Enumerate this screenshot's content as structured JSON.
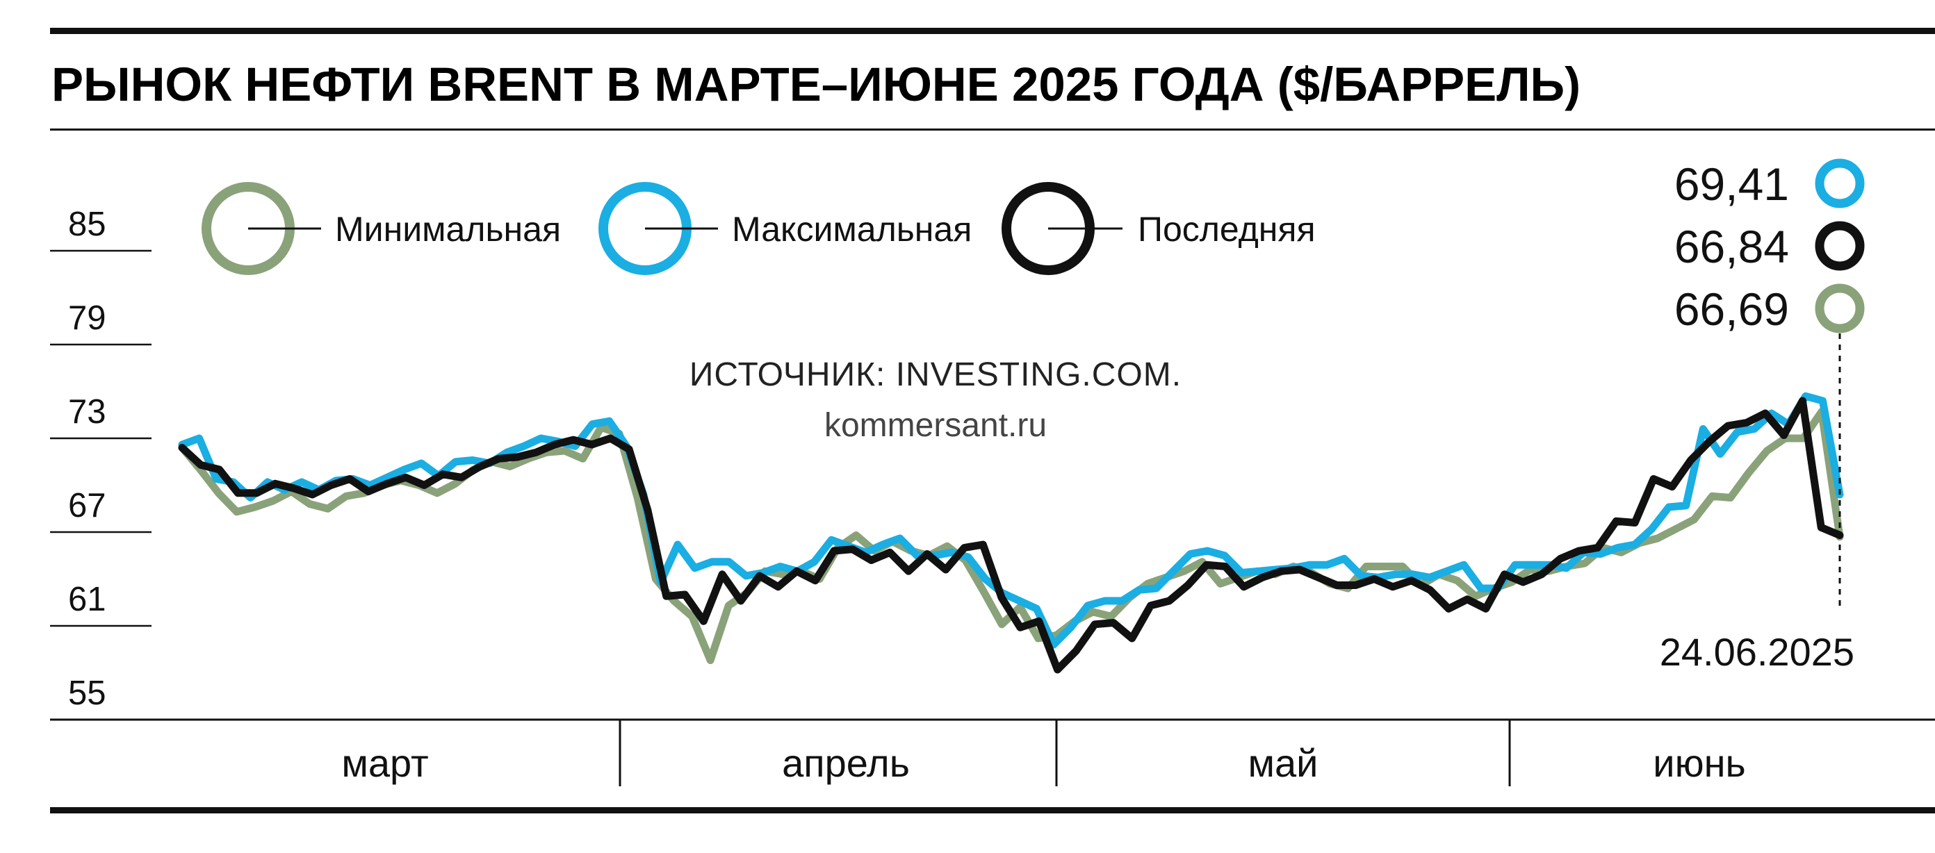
{
  "chart_data": {
    "type": "line",
    "title": "РЫНОК НЕФТИ BRENT В МАРТЕ–ИЮНЕ 2025 ГОДА ($/БАРРЕЛЬ)",
    "source": "ИСТОЧНИК: INVESTING.COM.",
    "site": "kommersant.ru",
    "ylim": [
      55,
      85
    ],
    "yticks": [
      "85",
      "79",
      "73",
      "67",
      "61",
      "55"
    ],
    "ytick_values": [
      85,
      79,
      73,
      67,
      61,
      55
    ],
    "months": [
      "март",
      "апрель",
      "май",
      "июнь"
    ],
    "legend_placement": "top-left",
    "last_date": "24.06.2025",
    "callouts": [
      {
        "label": "69,41",
        "series": "Максимальная"
      },
      {
        "label": "66,84",
        "series": "Последняя"
      },
      {
        "label": "66,69",
        "series": "Минимальная"
      }
    ],
    "colors": {
      "min": "#8aa27a",
      "max": "#1aaee3",
      "last": "#111111"
    },
    "series": [
      {
        "name": "Минимальная",
        "color": "#8aa27a",
        "values": [
          72.4,
          71.0,
          69.5,
          68.3,
          68.6,
          69.0,
          69.6,
          68.8,
          68.5,
          69.3,
          69.5,
          70.0,
          70.3,
          70.0,
          69.5,
          70.1,
          71.0,
          71.5,
          71.2,
          71.7,
          72.1,
          72.2,
          71.7,
          73.7,
          73.3,
          69.2,
          64.0,
          62.6,
          61.6,
          58.8,
          62.3,
          63.1,
          64.5,
          64.3,
          64.5,
          64.0,
          66.0,
          66.8,
          65.8,
          66.4,
          65.8,
          65.5,
          66.1,
          65.2,
          63.2,
          61.1,
          62.2,
          60.2,
          60.4,
          61.3,
          61.9,
          61.6,
          62.8,
          63.7,
          64.1,
          64.5,
          65.1,
          63.7,
          64.1,
          64.5,
          64.3,
          64.8,
          64.4,
          63.7,
          63.4,
          64.8,
          64.8,
          64.8,
          63.6,
          64.3,
          63.9,
          62.9,
          63.4,
          63.8,
          64.6,
          64.5,
          64.8,
          65.0,
          66.0,
          65.7,
          66.3,
          66.6,
          67.2,
          67.8,
          69.3,
          69.2,
          70.8,
          72.2,
          73.0,
          73.0,
          74.7,
          66.7
        ]
      },
      {
        "name": "Максимальная",
        "color": "#1aaee3",
        "values": [
          72.6,
          73.0,
          70.4,
          70.2,
          69.2,
          70.2,
          69.7,
          70.2,
          69.7,
          70.3,
          70.4,
          70.0,
          70.5,
          71.0,
          71.4,
          70.6,
          71.5,
          71.6,
          71.4,
          72.1,
          72.5,
          73.0,
          72.8,
          72.5,
          73.9,
          74.1,
          72.5,
          69.4,
          63.8,
          66.2,
          64.7,
          65.1,
          65.1,
          64.2,
          64.4,
          64.8,
          64.5,
          65.1,
          66.5,
          66.1,
          65.7,
          66.2,
          66.6,
          65.5,
          65.5,
          65.7,
          65.4,
          64.0,
          63.1,
          62.6,
          62.1,
          59.8,
          60.9,
          62.3,
          62.6,
          62.6,
          63.3,
          63.4,
          64.5,
          65.6,
          65.8,
          65.5,
          64.4,
          64.5,
          64.6,
          64.7,
          64.9,
          64.9,
          65.3,
          64.2,
          64.1,
          64.3,
          64.3,
          64.1,
          64.5,
          64.9,
          63.4,
          63.4,
          64.9,
          64.9,
          64.9,
          64.7,
          65.7,
          65.6,
          66.0,
          66.2,
          67.2,
          68.6,
          68.7,
          73.6,
          72.0,
          73.4,
          73.6,
          74.6,
          73.9,
          75.7,
          75.4,
          69.4
        ]
      },
      {
        "name": "Последняя",
        "color": "#111111",
        "values": [
          72.4,
          71.3,
          71.0,
          69.5,
          69.5,
          70.1,
          69.8,
          69.4,
          70.0,
          70.4,
          69.6,
          70.1,
          70.5,
          70.0,
          70.7,
          70.5,
          71.2,
          71.7,
          71.8,
          72.1,
          72.6,
          72.9,
          72.6,
          73.0,
          72.3,
          68.4,
          62.9,
          63.0,
          61.3,
          64.3,
          62.6,
          64.2,
          63.5,
          64.5,
          63.9,
          65.8,
          65.9,
          65.2,
          65.7,
          64.5,
          65.6,
          64.6,
          66.0,
          66.2,
          62.8,
          60.9,
          61.3,
          58.2,
          59.4,
          61.1,
          61.2,
          60.2,
          62.3,
          62.6,
          63.6,
          64.9,
          64.8,
          63.5,
          64.1,
          64.5,
          64.6,
          64.1,
          63.6,
          63.6,
          64.0,
          63.5,
          63.9,
          63.3,
          62.1,
          62.7,
          62.1,
          64.3,
          63.8,
          64.3,
          65.3,
          65.8,
          66.0,
          67.7,
          67.6,
          70.4,
          69.9,
          71.6,
          72.8,
          73.8,
          74.0,
          74.6,
          73.2,
          75.4,
          67.3,
          66.8
        ]
      }
    ]
  }
}
